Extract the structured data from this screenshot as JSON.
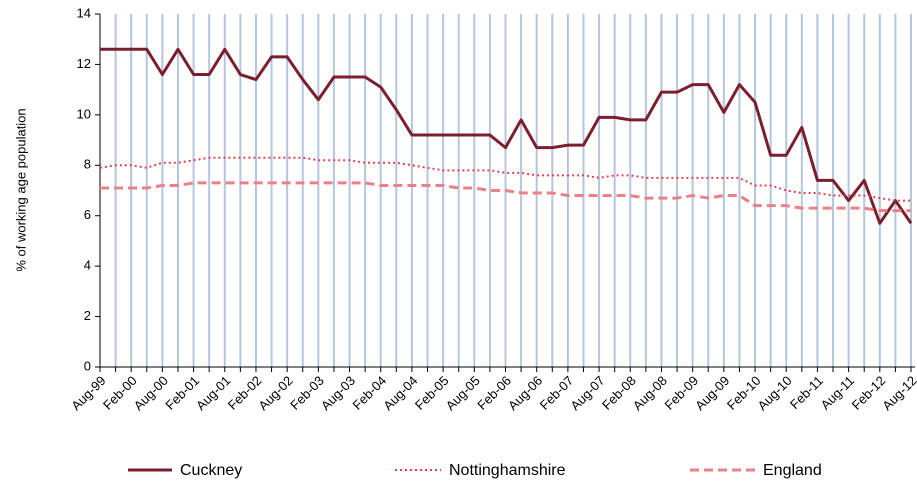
{
  "chart_data": {
    "type": "line",
    "y_label": "% of working age population",
    "categories": [
      "Aug-99",
      null,
      "Feb-00",
      null,
      "Aug-00",
      null,
      "Feb-01",
      null,
      "Aug-01",
      null,
      "Feb-02",
      null,
      "Aug-02",
      null,
      "Feb-03",
      null,
      "Aug-03",
      null,
      "Feb-04",
      null,
      "Aug-04",
      null,
      "Feb-05",
      null,
      "Aug-05",
      null,
      "Feb-06",
      null,
      "Aug-06",
      null,
      "Feb-07",
      null,
      "Aug-07",
      null,
      "Feb-08",
      null,
      "Aug-08",
      null,
      "Feb-09",
      null,
      "Aug-09",
      null,
      "Feb-10",
      null,
      "Aug-10",
      null,
      "Feb-11",
      null,
      "Aug-11",
      null,
      "Feb-12",
      null,
      "Aug-12"
    ],
    "series": [
      {
        "name": "Cuckney",
        "color": "#7b1f2e",
        "dash": "solid",
        "values": [
          12.6,
          12.6,
          12.6,
          12.6,
          11.6,
          12.6,
          11.6,
          11.6,
          12.6,
          11.6,
          11.4,
          12.3,
          12.3,
          11.4,
          10.6,
          11.5,
          11.5,
          11.5,
          11.1,
          10.2,
          9.2,
          9.2,
          9.2,
          9.2,
          9.2,
          9.2,
          8.7,
          9.8,
          8.7,
          8.7,
          8.8,
          8.8,
          9.9,
          9.9,
          9.8,
          9.8,
          10.9,
          10.9,
          11.2,
          11.2,
          10.1,
          11.2,
          10.5,
          8.4,
          8.4,
          9.5,
          7.4,
          7.4,
          6.6,
          7.4,
          5.7,
          6.6,
          5.7
        ]
      },
      {
        "name": "Nottinghamshire",
        "color": "#e8404a",
        "dash": "dotted",
        "values": [
          7.9,
          8.0,
          8.0,
          7.9,
          8.1,
          8.1,
          8.2,
          8.3,
          8.3,
          8.3,
          8.3,
          8.3,
          8.3,
          8.3,
          8.2,
          8.2,
          8.2,
          8.1,
          8.1,
          8.1,
          8.0,
          7.9,
          7.8,
          7.8,
          7.8,
          7.8,
          7.7,
          7.7,
          7.6,
          7.6,
          7.6,
          7.6,
          7.5,
          7.6,
          7.6,
          7.5,
          7.5,
          7.5,
          7.5,
          7.5,
          7.5,
          7.5,
          7.2,
          7.2,
          7.0,
          6.9,
          6.9,
          6.8,
          6.8,
          6.8,
          6.7,
          6.6,
          6.6
        ]
      },
      {
        "name": "England",
        "color": "#ec7f88",
        "dash": "dashed",
        "values": [
          7.1,
          7.1,
          7.1,
          7.1,
          7.2,
          7.2,
          7.3,
          7.3,
          7.3,
          7.3,
          7.3,
          7.3,
          7.3,
          7.3,
          7.3,
          7.3,
          7.3,
          7.3,
          7.2,
          7.2,
          7.2,
          7.2,
          7.2,
          7.1,
          7.1,
          7.0,
          7.0,
          6.9,
          6.9,
          6.9,
          6.8,
          6.8,
          6.8,
          6.8,
          6.8,
          6.7,
          6.7,
          6.7,
          6.8,
          6.7,
          6.8,
          6.8,
          6.4,
          6.4,
          6.4,
          6.3,
          6.3,
          6.3,
          6.3,
          6.3,
          6.2,
          6.2,
          6.2
        ]
      }
    ],
    "ylim": [
      0,
      14
    ],
    "yticks": [
      0,
      2,
      4,
      6,
      8,
      10,
      12,
      14
    ],
    "xgrid": true,
    "xgrid_color": "#b4c6dc",
    "legend": "bottom"
  }
}
